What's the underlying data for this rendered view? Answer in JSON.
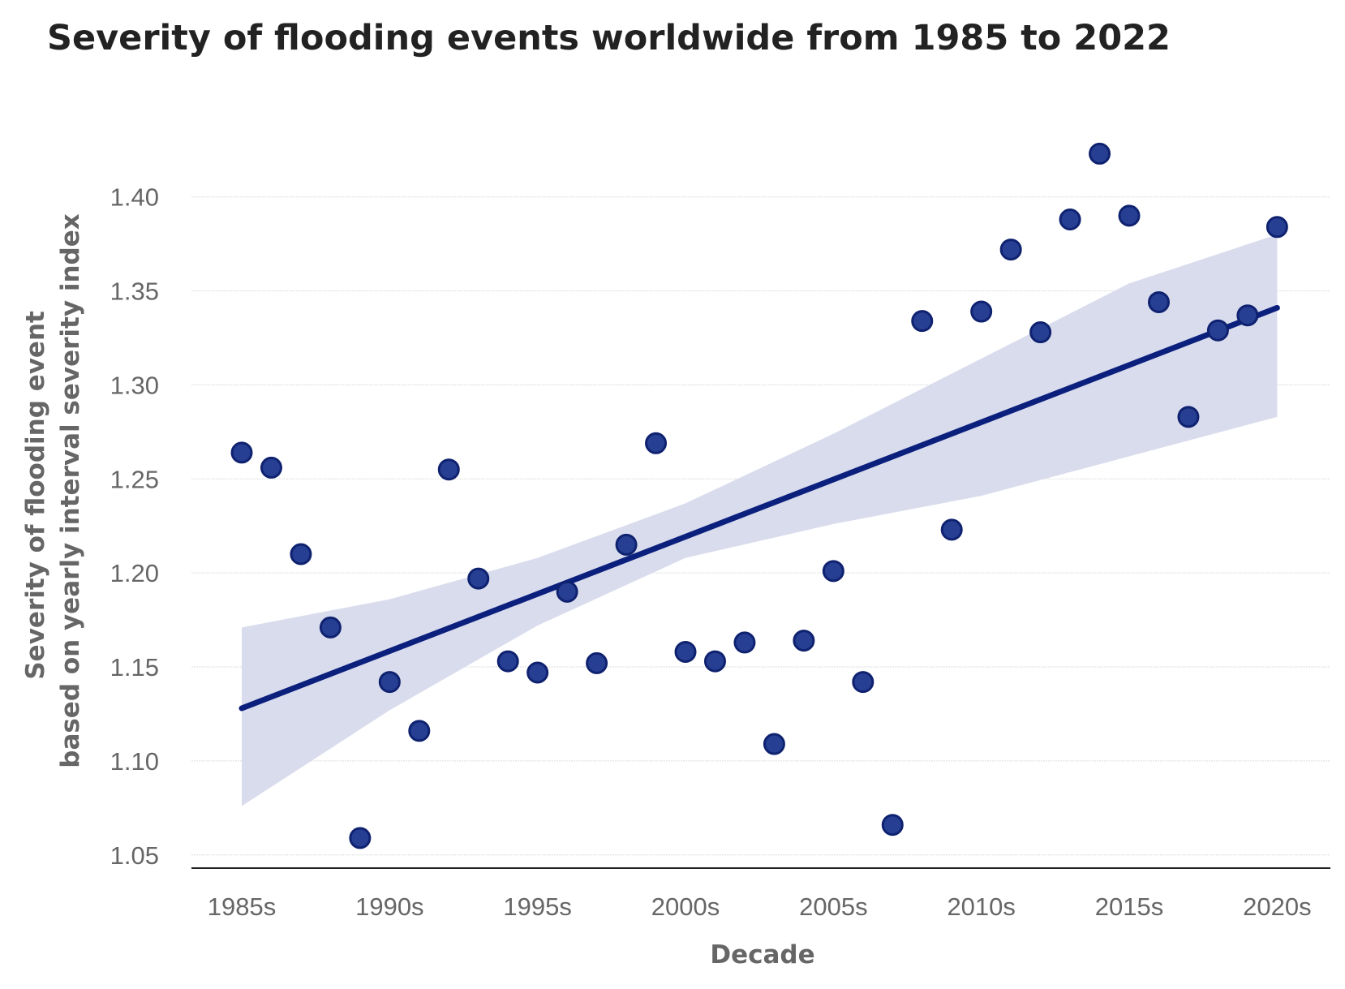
{
  "chart_data": {
    "type": "scatter",
    "title": "Severity of flooding events worldwide from 1985 to 2022",
    "xlabel": "Decade",
    "ylabel": [
      "Severity of flooding event",
      "based on yearly interval severity index"
    ],
    "x_tick_labels": [
      "1985s",
      "1990s",
      "1995s",
      "2000s",
      "2005s",
      "2010s",
      "2015s",
      "2020s"
    ],
    "x_tick_values": [
      1985,
      1990,
      1995,
      2000,
      2005,
      2010,
      2015,
      2020
    ],
    "y_ticks": [
      "1.05",
      "1.10",
      "1.15",
      "1.20",
      "1.25",
      "1.30",
      "1.35",
      "1.40"
    ],
    "y_tick_values": [
      1.05,
      1.1,
      1.15,
      1.2,
      1.25,
      1.3,
      1.35,
      1.4
    ],
    "xlim": [
      1983.3,
      2021.8
    ],
    "ylim": [
      1.043,
      1.44
    ],
    "grid": true,
    "x": [
      1985,
      1986,
      1987,
      1988,
      1989,
      1990,
      1991,
      1992,
      1993,
      1994,
      1995,
      1996,
      1997,
      1998,
      1999,
      2000,
      2001,
      2002,
      2003,
      2004,
      2005,
      2006,
      2007,
      2008,
      2009,
      2010,
      2011,
      2012,
      2013,
      2014,
      2015,
      2016,
      2017,
      2018,
      2019,
      2020
    ],
    "y": [
      1.264,
      1.256,
      1.21,
      1.171,
      1.059,
      1.142,
      1.116,
      1.255,
      1.197,
      1.153,
      1.147,
      1.19,
      1.152,
      1.215,
      1.269,
      1.158,
      1.153,
      1.163,
      1.109,
      1.164,
      1.201,
      1.142,
      1.066,
      1.334,
      1.223,
      1.339,
      1.372,
      1.328,
      1.388,
      1.423,
      1.39,
      1.344,
      1.283,
      1.329,
      1.337,
      1.384
    ],
    "regression": {
      "x": [
        1985,
        2020
      ],
      "y": [
        1.128,
        1.341
      ]
    },
    "confidence_band": {
      "x": [
        1985,
        1990,
        1995,
        2000,
        2005,
        2010,
        2015,
        2020
      ],
      "lower": [
        1.076,
        1.127,
        1.172,
        1.208,
        1.226,
        1.241,
        1.262,
        1.283
      ],
      "upper": [
        1.171,
        1.186,
        1.208,
        1.237,
        1.274,
        1.314,
        1.354,
        1.38
      ]
    },
    "colors": {
      "points": "#273f93",
      "line": "#0b1f7d",
      "band": "#d9dced"
    }
  }
}
